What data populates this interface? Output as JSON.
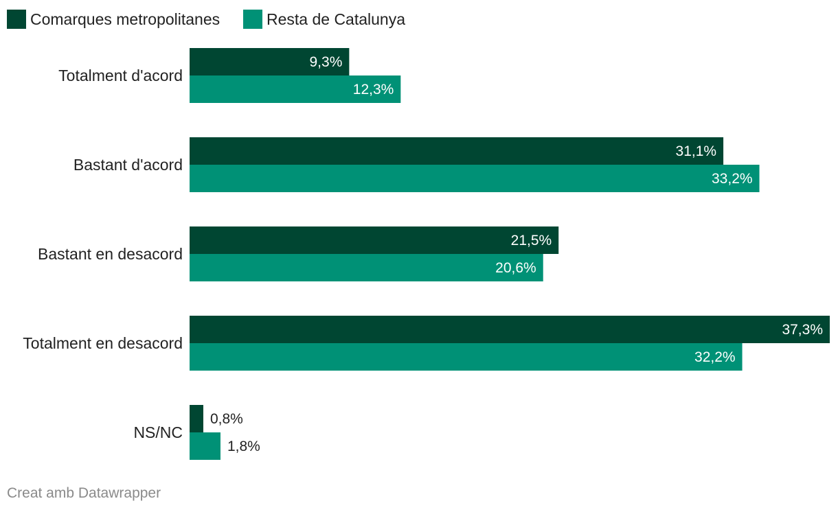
{
  "chart_data": {
    "type": "bar",
    "orientation": "horizontal",
    "title": "",
    "xlabel": "",
    "ylabel": "",
    "xlim": [
      0,
      37.3
    ],
    "grid": false,
    "legend_position": "top-left",
    "categories": [
      "Totalment d'acord",
      "Bastant d'acord",
      "Bastant en desacord",
      "Totalment en desacord",
      "NS/NC"
    ],
    "series": [
      {
        "name": "Comarques metropolitanes",
        "color": "#004632",
        "values": [
          9.3,
          31.1,
          21.5,
          37.3,
          0.8
        ],
        "labels": [
          "9,3%",
          "31,1%",
          "21,5%",
          "37,3%",
          "0,8%"
        ]
      },
      {
        "name": "Resta de Catalunya",
        "color": "#009176",
        "values": [
          12.3,
          33.2,
          20.6,
          32.2,
          1.8
        ],
        "labels": [
          "12,3%",
          "33,2%",
          "20,6%",
          "32,2%",
          "1,8%"
        ]
      }
    ]
  },
  "footer": {
    "credit": "Creat amb Datawrapper"
  }
}
